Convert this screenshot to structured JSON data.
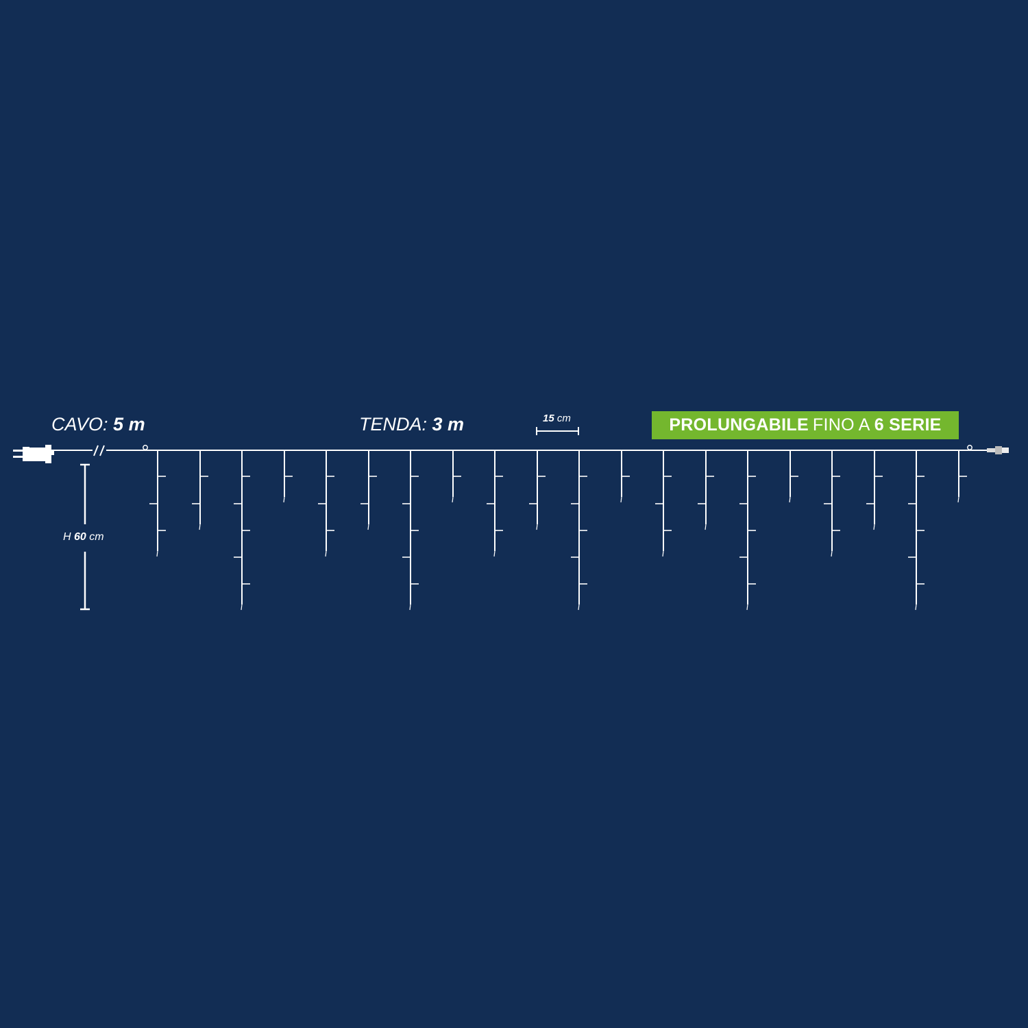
{
  "colors": {
    "background": "#122d54",
    "line": "#ffffff",
    "badge": "#74b72e"
  },
  "cable": {
    "label": "CAVO:",
    "value": "5 m"
  },
  "curtain": {
    "label": "TENDA:",
    "value": "3 m"
  },
  "spacing": {
    "value": "15",
    "unit": "cm"
  },
  "height": {
    "prefix": "H",
    "value": "60",
    "unit": "cm"
  },
  "badge": {
    "bold1": "PROLUNGABILE",
    "normal": "FINO A",
    "bold2": "6 SERIE"
  },
  "icons": [
    "plug-icon",
    "cable-break-icon",
    "hook-icon",
    "end-connector-icon"
  ],
  "drops": {
    "count": 20,
    "led_pattern": [
      3,
      2,
      5,
      1
    ]
  }
}
